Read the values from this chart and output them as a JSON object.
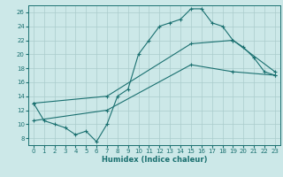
{
  "xlabel": "Humidex (Indice chaleur)",
  "xlim": [
    -0.5,
    23.5
  ],
  "ylim": [
    7,
    27
  ],
  "yticks": [
    8,
    10,
    12,
    14,
    16,
    18,
    20,
    22,
    24,
    26
  ],
  "xticks": [
    0,
    1,
    2,
    3,
    4,
    5,
    6,
    7,
    8,
    9,
    10,
    11,
    12,
    13,
    14,
    15,
    16,
    17,
    18,
    19,
    20,
    21,
    22,
    23
  ],
  "background_color": "#cce8e8",
  "grid_color": "#aacccc",
  "line_color": "#1a7070",
  "line1_x": [
    0,
    1,
    2,
    3,
    4,
    5,
    6,
    7,
    8,
    9,
    10,
    11,
    12,
    13,
    14,
    15,
    16,
    17,
    18,
    19,
    20,
    21,
    22,
    23
  ],
  "line1_y": [
    13,
    10.5,
    10,
    9.5,
    8.5,
    9,
    7.5,
    10.0,
    14.0,
    15.0,
    20,
    22,
    24,
    24.5,
    25,
    26.5,
    26.5,
    24.5,
    24,
    22,
    21,
    19.5,
    17.5,
    17
  ],
  "line2_x": [
    0,
    7,
    15,
    19,
    23
  ],
  "line2_y": [
    13,
    14.0,
    21.5,
    22.0,
    17.5
  ],
  "line3_x": [
    0,
    7,
    15,
    19,
    23
  ],
  "line3_y": [
    10.5,
    12.0,
    18.5,
    17.5,
    17.0
  ],
  "figsize": [
    3.2,
    2.0
  ],
  "dpi": 100
}
